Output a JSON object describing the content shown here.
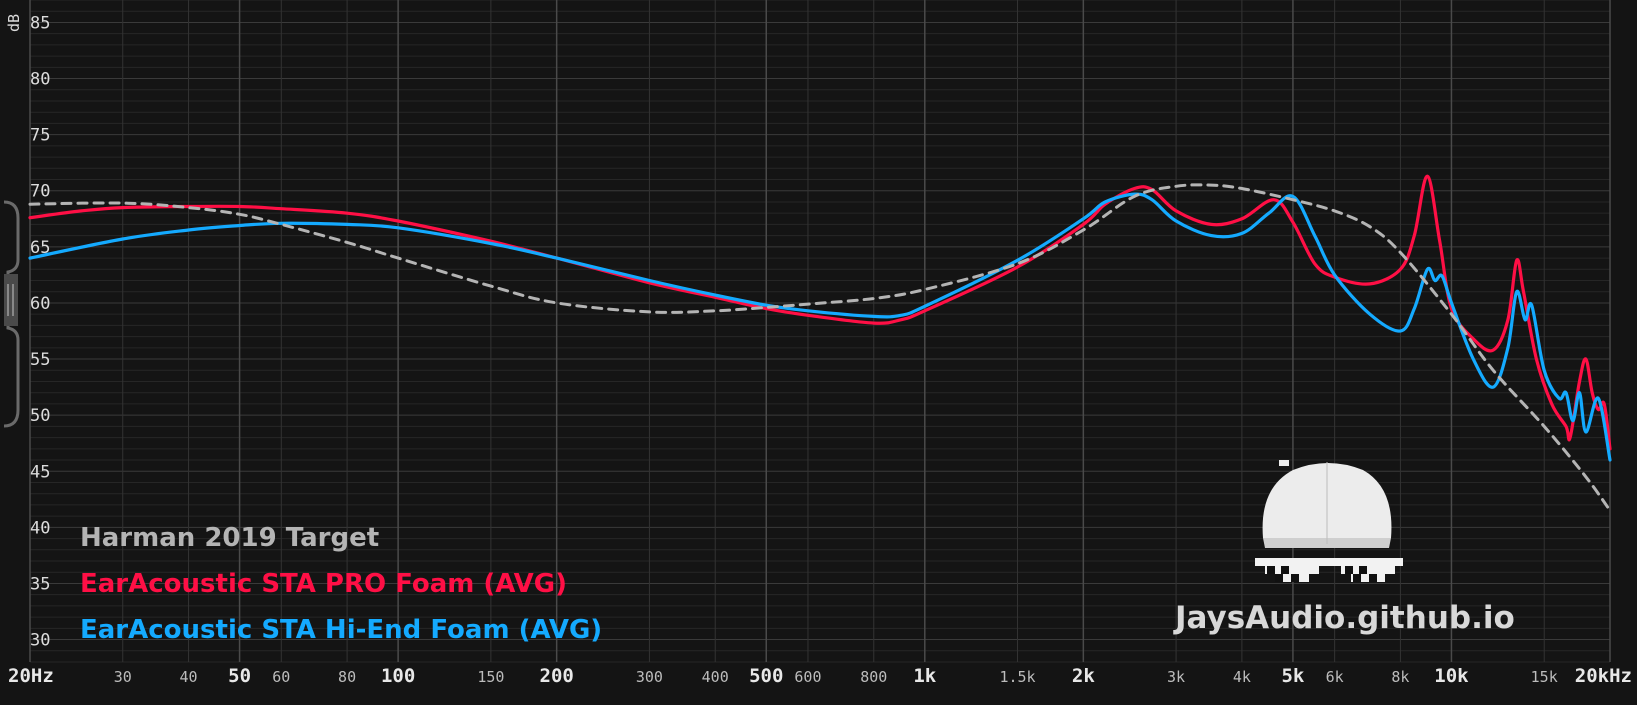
{
  "chart_data": {
    "type": "line",
    "title": "",
    "xlabel": "",
    "ylabel": "dB",
    "x_scale": "log",
    "xlim": [
      20,
      20000
    ],
    "ylim": [
      28,
      87
    ],
    "grid": true,
    "x_ticks": [
      {
        "value": 20,
        "label": "20Hz",
        "major": true
      },
      {
        "value": 30,
        "label": "30",
        "major": false
      },
      {
        "value": 40,
        "label": "40",
        "major": false
      },
      {
        "value": 50,
        "label": "50",
        "major": true
      },
      {
        "value": 60,
        "label": "60",
        "major": false
      },
      {
        "value": 80,
        "label": "80",
        "major": false
      },
      {
        "value": 100,
        "label": "100",
        "major": true
      },
      {
        "value": 150,
        "label": "150",
        "major": false
      },
      {
        "value": 200,
        "label": "200",
        "major": true
      },
      {
        "value": 300,
        "label": "300",
        "major": false
      },
      {
        "value": 400,
        "label": "400",
        "major": false
      },
      {
        "value": 500,
        "label": "500",
        "major": true
      },
      {
        "value": 600,
        "label": "600",
        "major": false
      },
      {
        "value": 800,
        "label": "800",
        "major": false
      },
      {
        "value": 1000,
        "label": "1k",
        "major": true
      },
      {
        "value": 1500,
        "label": "1.5k",
        "major": false
      },
      {
        "value": 2000,
        "label": "2k",
        "major": true
      },
      {
        "value": 3000,
        "label": "3k",
        "major": false
      },
      {
        "value": 4000,
        "label": "4k",
        "major": false
      },
      {
        "value": 5000,
        "label": "5k",
        "major": true
      },
      {
        "value": 6000,
        "label": "6k",
        "major": false
      },
      {
        "value": 8000,
        "label": "8k",
        "major": false
      },
      {
        "value": 10000,
        "label": "10k",
        "major": true
      },
      {
        "value": 15000,
        "label": "15k",
        "major": false
      },
      {
        "value": 20000,
        "label": "20kHz",
        "major": true
      }
    ],
    "y_ticks": [
      {
        "value": 85,
        "label": "85"
      },
      {
        "value": 80,
        "label": "80"
      },
      {
        "value": 75,
        "label": "75"
      },
      {
        "value": 70,
        "label": "70"
      },
      {
        "value": 65,
        "label": "65"
      },
      {
        "value": 60,
        "label": "60"
      },
      {
        "value": 55,
        "label": "55"
      },
      {
        "value": 50,
        "label": "50"
      },
      {
        "value": 45,
        "label": "45"
      },
      {
        "value": 40,
        "label": "40"
      },
      {
        "value": 35,
        "label": "35"
      },
      {
        "value": 30,
        "label": "30"
      }
    ],
    "legend_placement": "bottom-left",
    "series": [
      {
        "name": "Harman 2019 Target",
        "color": "#b4b4b4",
        "dashed": true,
        "points": [
          [
            20,
            68.8
          ],
          [
            30,
            68.9
          ],
          [
            40,
            68.5
          ],
          [
            50,
            67.9
          ],
          [
            60,
            67
          ],
          [
            80,
            65.4
          ],
          [
            100,
            64
          ],
          [
            150,
            61.5
          ],
          [
            200,
            60
          ],
          [
            300,
            59.2
          ],
          [
            400,
            59.3
          ],
          [
            500,
            59.6
          ],
          [
            600,
            59.9
          ],
          [
            800,
            60.4
          ],
          [
            1000,
            61.2
          ],
          [
            1500,
            63.5
          ],
          [
            2000,
            66.5
          ],
          [
            2500,
            69.5
          ],
          [
            3000,
            70.4
          ],
          [
            3500,
            70.5
          ],
          [
            4000,
            70.2
          ],
          [
            5000,
            69.2
          ],
          [
            6000,
            68.2
          ],
          [
            7000,
            66.8
          ],
          [
            8000,
            64.5
          ],
          [
            10000,
            59
          ],
          [
            12000,
            54
          ],
          [
            15000,
            49
          ],
          [
            18000,
            44.5
          ],
          [
            20000,
            41.5
          ]
        ]
      },
      {
        "name": "EarAcoustic STA PRO Foam (AVG)",
        "color": "#ff0f45",
        "dashed": false,
        "points": [
          [
            20,
            67.6
          ],
          [
            25,
            68.2
          ],
          [
            30,
            68.5
          ],
          [
            40,
            68.6
          ],
          [
            50,
            68.6
          ],
          [
            60,
            68.4
          ],
          [
            80,
            68
          ],
          [
            100,
            67.3
          ],
          [
            150,
            65.5
          ],
          [
            200,
            64
          ],
          [
            300,
            61.8
          ],
          [
            400,
            60.5
          ],
          [
            500,
            59.5
          ],
          [
            600,
            58.9
          ],
          [
            800,
            58.2
          ],
          [
            900,
            58.5
          ],
          [
            1000,
            59.3
          ],
          [
            1500,
            63.2
          ],
          [
            2000,
            67
          ],
          [
            2200,
            68.8
          ],
          [
            2500,
            70.2
          ],
          [
            2700,
            70.1
          ],
          [
            3000,
            68.2
          ],
          [
            3500,
            67
          ],
          [
            4000,
            67.5
          ],
          [
            4600,
            69.2
          ],
          [
            5000,
            67.2
          ],
          [
            5500,
            63.5
          ],
          [
            6000,
            62.3
          ],
          [
            7000,
            61.7
          ],
          [
            8000,
            63
          ],
          [
            8500,
            66
          ],
          [
            9000,
            71.3
          ],
          [
            9500,
            65.5
          ],
          [
            10000,
            59.5
          ],
          [
            11000,
            56.8
          ],
          [
            12000,
            55.8
          ],
          [
            12800,
            58.5
          ],
          [
            13300,
            63.8
          ],
          [
            13700,
            61
          ],
          [
            14500,
            55
          ],
          [
            15500,
            51
          ],
          [
            16500,
            49
          ],
          [
            16800,
            48
          ],
          [
            17500,
            53
          ],
          [
            18000,
            55
          ],
          [
            18500,
            52
          ],
          [
            19000,
            50.5
          ],
          [
            19500,
            51
          ],
          [
            20000,
            47
          ]
        ]
      },
      {
        "name": "EarAcoustic STA Hi-End Foam (AVG)",
        "color": "#14aaff",
        "dashed": false,
        "points": [
          [
            20,
            64
          ],
          [
            30,
            65.7
          ],
          [
            40,
            66.5
          ],
          [
            50,
            66.9
          ],
          [
            60,
            67.1
          ],
          [
            80,
            67
          ],
          [
            100,
            66.7
          ],
          [
            150,
            65.3
          ],
          [
            200,
            64
          ],
          [
            300,
            62
          ],
          [
            400,
            60.7
          ],
          [
            500,
            59.8
          ],
          [
            600,
            59.3
          ],
          [
            800,
            58.8
          ],
          [
            900,
            58.9
          ],
          [
            1000,
            59.7
          ],
          [
            1500,
            63.8
          ],
          [
            2000,
            67.5
          ],
          [
            2200,
            69
          ],
          [
            2500,
            69.7
          ],
          [
            2700,
            69.2
          ],
          [
            3000,
            67.3
          ],
          [
            3500,
            66
          ],
          [
            4000,
            66.2
          ],
          [
            4500,
            68
          ],
          [
            5000,
            69.5
          ],
          [
            5500,
            66
          ],
          [
            6000,
            62.5
          ],
          [
            7000,
            59
          ],
          [
            8000,
            57.5
          ],
          [
            8500,
            59.5
          ],
          [
            9000,
            63
          ],
          [
            9300,
            62
          ],
          [
            9600,
            62.4
          ],
          [
            10000,
            60
          ],
          [
            11000,
            55
          ],
          [
            12000,
            52.5
          ],
          [
            12800,
            56
          ],
          [
            13300,
            61
          ],
          [
            13800,
            58.5
          ],
          [
            14200,
            59.8
          ],
          [
            15000,
            54
          ],
          [
            16000,
            51.5
          ],
          [
            16500,
            52
          ],
          [
            17000,
            49.5
          ],
          [
            17500,
            52
          ],
          [
            18000,
            48.5
          ],
          [
            19000,
            51.5
          ],
          [
            20000,
            46
          ]
        ]
      }
    ]
  },
  "legend": {
    "target": "Harman 2019 Target",
    "pro": "EarAcoustic STA PRO Foam (AVG)",
    "hiend": "EarAcoustic STA Hi-End Foam (AVG)"
  },
  "watermark": {
    "text": "JaysAudio.github.io",
    "logo_icon": "cap-and-pixel-sunglasses-icon"
  },
  "colors": {
    "background": "#141414",
    "grid_major": "#3a3a3a",
    "grid_minor": "#262626",
    "text": "#dcdcdc"
  }
}
